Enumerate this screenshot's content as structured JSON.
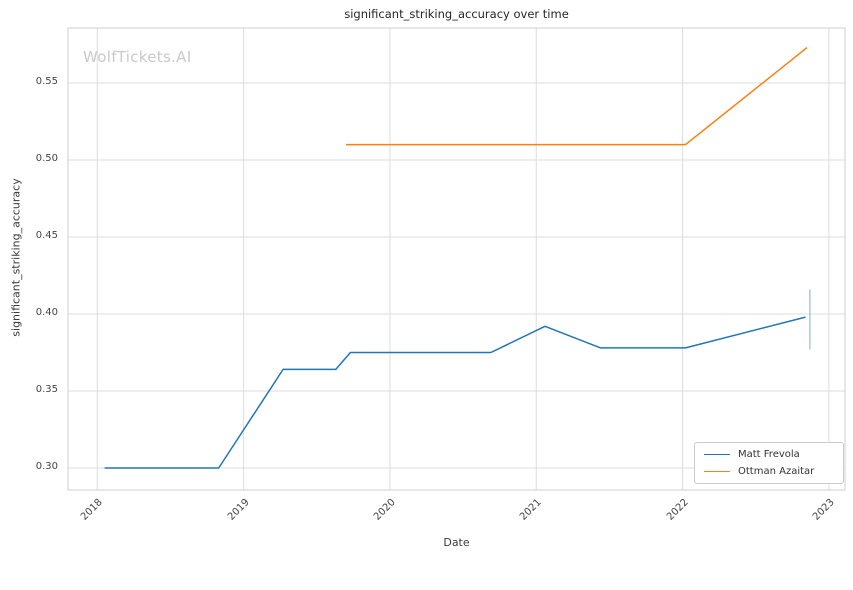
{
  "chart_data": {
    "type": "line",
    "title": "significant_striking_accuracy over time",
    "xlabel": "Date",
    "ylabel": "significant_striking_accuracy",
    "watermark": "WolfTickets.AI",
    "grid": true,
    "legend_position": "lower right",
    "xlim": [
      2017.8,
      2023.11
    ],
    "ylim": [
      0.2857,
      0.5857
    ],
    "x_ticks": [
      {
        "label": "2018",
        "value": 2018
      },
      {
        "label": "2019",
        "value": 2019
      },
      {
        "label": "2020",
        "value": 2020
      },
      {
        "label": "2021",
        "value": 2021
      },
      {
        "label": "2022",
        "value": 2022
      },
      {
        "label": "2023",
        "value": 2023
      }
    ],
    "y_ticks": [
      {
        "label": "0.30",
        "value": 0.3
      },
      {
        "label": "0.35",
        "value": 0.35
      },
      {
        "label": "0.40",
        "value": 0.4
      },
      {
        "label": "0.45",
        "value": 0.45
      },
      {
        "label": "0.50",
        "value": 0.5
      },
      {
        "label": "0.55",
        "value": 0.55
      }
    ],
    "series": [
      {
        "name": "Matt Frevola",
        "color": "#1f77b4",
        "points": [
          [
            2018.05,
            0.3
          ],
          [
            2018.83,
            0.3
          ],
          [
            2019.27,
            0.364
          ],
          [
            2019.63,
            0.364
          ],
          [
            2019.73,
            0.375
          ],
          [
            2020.69,
            0.375
          ],
          [
            2021.06,
            0.392
          ],
          [
            2021.44,
            0.378
          ],
          [
            2022.02,
            0.378
          ],
          [
            2022.84,
            0.398
          ]
        ]
      },
      {
        "name": "Ottman Azaitar",
        "color": "#ff7f0e",
        "points": [
          [
            2019.7,
            0.51
          ],
          [
            2022.02,
            0.51
          ],
          [
            2022.85,
            0.573
          ]
        ]
      }
    ],
    "annotations": [
      {
        "type": "vertical-segment",
        "x": 2022.87,
        "y1": 0.377,
        "y2": 0.416,
        "color": "#8abfdd"
      }
    ]
  }
}
